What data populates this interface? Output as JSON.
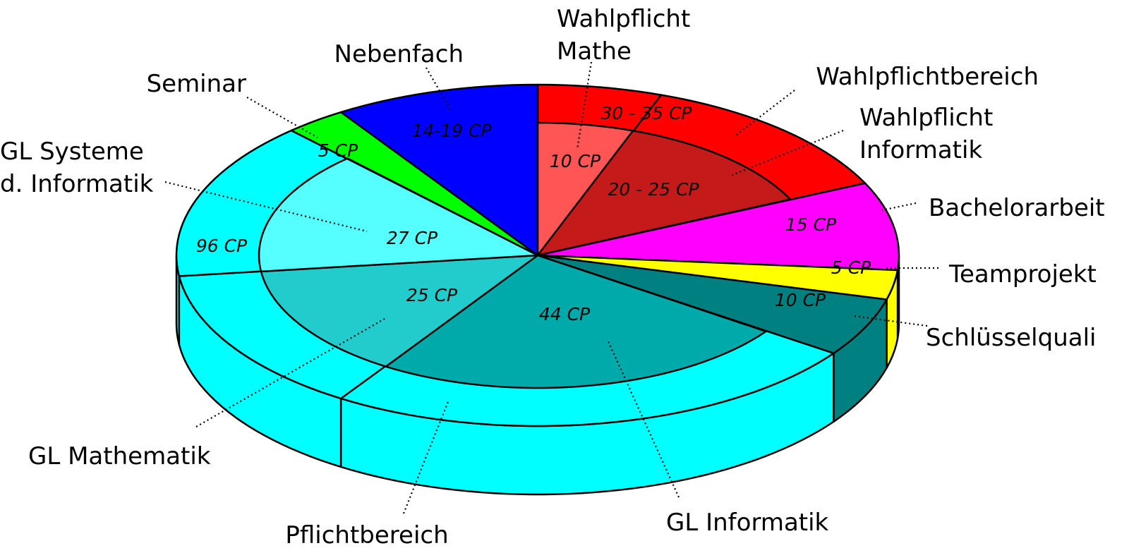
{
  "chart_data": {
    "type": "pie",
    "style": "3d-nested",
    "total_label": "",
    "groups": [
      {
        "name": "Pflichtbereich",
        "value_label": "96 CP",
        "color": "#00FFFF",
        "segments": [
          {
            "name": "GL Systeme d. Informatik",
            "label_lines": [
              "GL Systeme",
              "d. Informatik"
            ],
            "value": 27,
            "value_label": "27 CP",
            "color": "#55FFFF"
          },
          {
            "name": "GL Mathematik",
            "label_lines": [
              "GL Mathematik"
            ],
            "value": 25,
            "value_label": "25 CP",
            "color": "#22CCCC"
          },
          {
            "name": "GL Informatik",
            "label_lines": [
              "GL Informatik"
            ],
            "value": 44,
            "value_label": "44 CP",
            "color": "#00AAAA"
          }
        ]
      },
      {
        "name": "Wahlpflichtbereich",
        "value_label": "30 - 35 CP",
        "color": "#FF0000",
        "segments": [
          {
            "name": "Wahlpflicht Mathe",
            "label_lines": [
              "Wahlpflicht",
              "Mathe"
            ],
            "value": 10,
            "value_label": "10 CP",
            "color": "#FF5555"
          },
          {
            "name": "Wahlpflicht Informatik",
            "label_lines": [
              "Wahlpflicht",
              "Informatik"
            ],
            "value": 22.5,
            "value_label": "20 - 25 CP",
            "color": "#C41A1A"
          }
        ]
      }
    ],
    "slices": [
      {
        "name": "Bachelorarbeit",
        "label_lines": [
          "Bachelorarbeit"
        ],
        "value": 15,
        "value_label": "15 CP",
        "color": "#FF00FF"
      },
      {
        "name": "Teamprojekt",
        "label_lines": [
          "Teamprojekt"
        ],
        "value": 5,
        "value_label": "5 CP",
        "color": "#FFFF00"
      },
      {
        "name": "Schlüsselquali",
        "label_lines": [
          "Schlüsselquali"
        ],
        "value": 10,
        "value_label": "10 CP",
        "color": "#008080"
      },
      {
        "name": "Seminar",
        "label_lines": [
          "Seminar"
        ],
        "value": 5,
        "value_label": "5 CP",
        "color": "#00FF00"
      },
      {
        "name": "Nebenfach",
        "label_lines": [
          "Nebenfach"
        ],
        "value": 16.5,
        "value_label": "14-19 CP",
        "color": "#0000FF"
      }
    ]
  }
}
